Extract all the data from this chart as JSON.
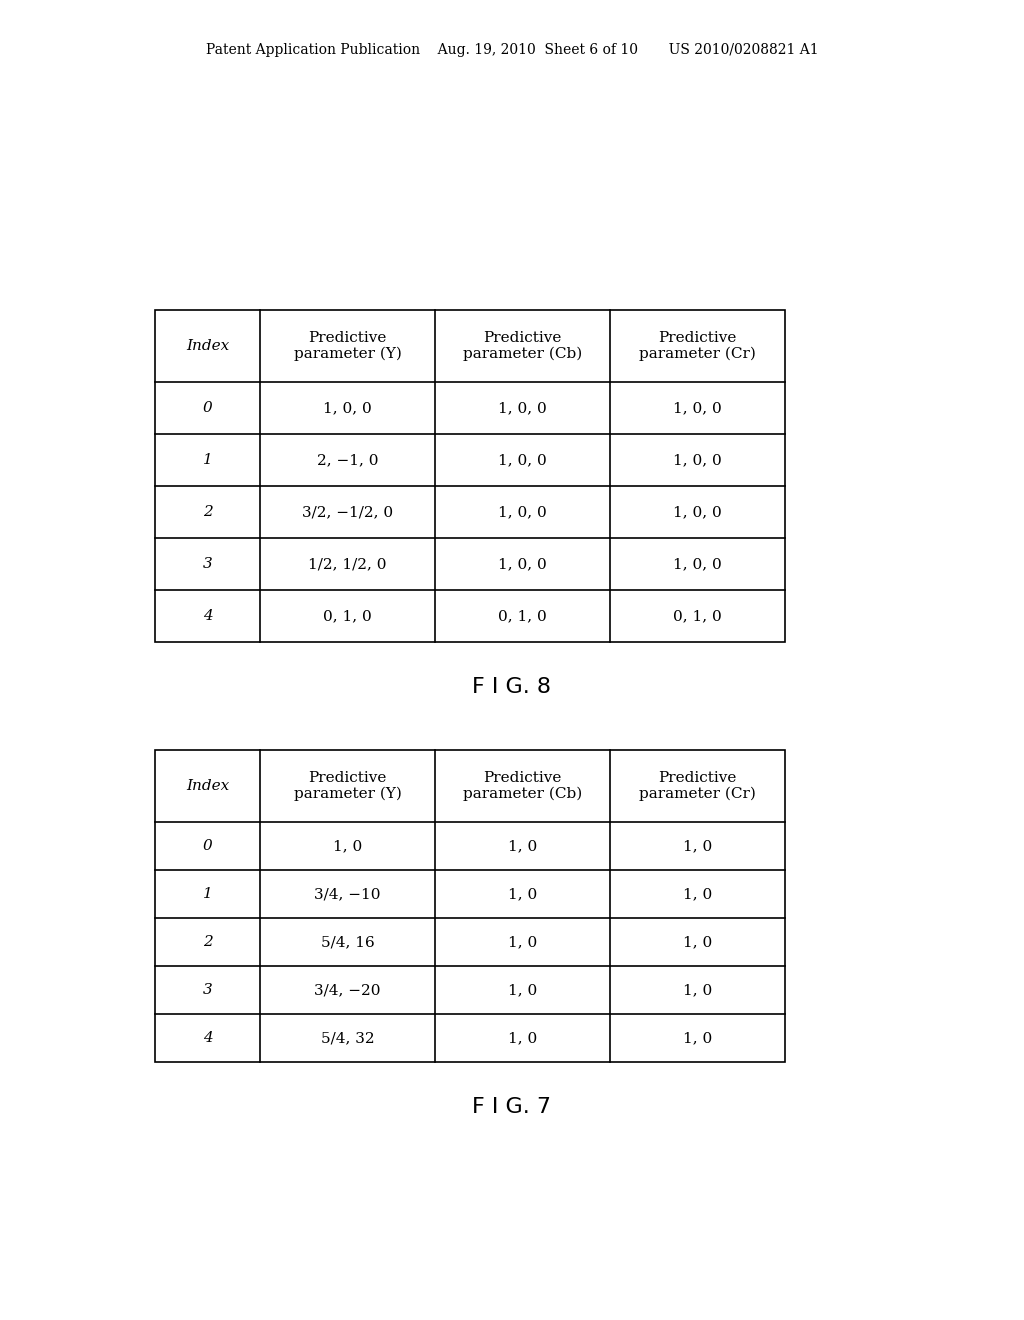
{
  "header_text": "Patent Application Publication    Aug. 19, 2010  Sheet 6 of 10       US 2010/0208821 A1",
  "fig7_label": "F I G. 7",
  "fig8_label": "F I G. 8",
  "table1": {
    "headers": [
      "Index",
      "Predictive\nparameter (Y)",
      "Predictive\nparameter (Cb)",
      "Predictive\nparameter (Cr)"
    ],
    "rows": [
      [
        "0",
        "1, 0",
        "1, 0",
        "1, 0"
      ],
      [
        "1",
        "3/4, −10",
        "1, 0",
        "1, 0"
      ],
      [
        "2",
        "5/4, 16",
        "1, 0",
        "1, 0"
      ],
      [
        "3",
        "3/4, −20",
        "1, 0",
        "1, 0"
      ],
      [
        "4",
        "5/4, 32",
        "1, 0",
        "1, 0"
      ]
    ]
  },
  "table2": {
    "headers": [
      "Index",
      "Predictive\nparameter (Y)",
      "Predictive\nparameter (Cb)",
      "Predictive\nparameter (Cr)"
    ],
    "rows": [
      [
        "0",
        "1, 0, 0",
        "1, 0, 0",
        "1, 0, 0"
      ],
      [
        "1",
        "2, −1, 0",
        "1, 0, 0",
        "1, 0, 0"
      ],
      [
        "2",
        "3/2, −1/2, 0",
        "1, 0, 0",
        "1, 0, 0"
      ],
      [
        "3",
        "1/2, 1/2, 0",
        "1, 0, 0",
        "1, 0, 0"
      ],
      [
        "4",
        "0, 1, 0",
        "0, 1, 0",
        "0, 1, 0"
      ]
    ]
  },
  "bg_color": "#ffffff",
  "text_color": "#000000",
  "line_color": "#000000",
  "font_size_header": 11,
  "font_size_cell": 11,
  "font_size_label": 16,
  "font_size_pub": 10
}
